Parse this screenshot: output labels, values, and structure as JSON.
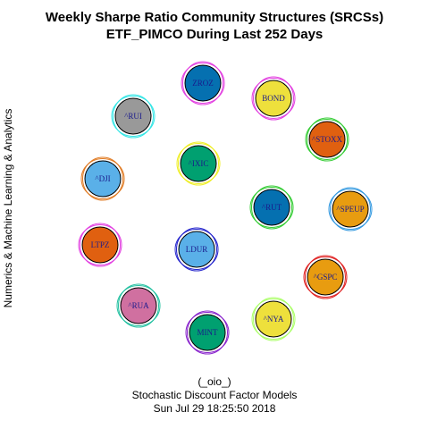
{
  "title": {
    "line1": "Weekly Sharpe Ratio Community Structures (SRCSs)",
    "line2": "ETF_PIMCO During Last 252 Days"
  },
  "ylabel": "Numerics & Machine Learning & Analytics",
  "footer": {
    "line1": "(_oio_)",
    "line2": "Stochastic Discount Factor Models",
    "line3": "Sun Jul 29 18:25:50 2018"
  },
  "nodes": [
    {
      "label": "ZROZ",
      "fill": "#0570b0",
      "ring": "#e23fe0"
    },
    {
      "label": "^RUI",
      "fill": "#999999",
      "ring": "#33e5e5"
    },
    {
      "label": "BOND",
      "fill": "#eee03c",
      "ring": "#e23fe0"
    },
    {
      "label": "^STOXX",
      "fill": "#e06010",
      "ring": "#33cc33"
    },
    {
      "label": "^IXIC",
      "fill": "#00a070",
      "ring": "#eeee22"
    },
    {
      "label": "^DJI",
      "fill": "#5ab0e8",
      "ring": "#e07a22"
    },
    {
      "label": "^RUT",
      "fill": "#0570b0",
      "ring": "#33cc33"
    },
    {
      "label": "^SPEUP",
      "fill": "#e89c10",
      "ring": "#3399e0"
    },
    {
      "label": "LTPZ",
      "fill": "#e06010",
      "ring": "#e23fe0"
    },
    {
      "label": "LDUR",
      "fill": "#5ab0e8",
      "ring": "#2222cc"
    },
    {
      "label": "^GSPC",
      "fill": "#e89c10",
      "ring": "#e02222"
    },
    {
      "label": "^RUA",
      "fill": "#d070a0",
      "ring": "#22c0a0"
    },
    {
      "label": "^NYA",
      "fill": "#eee03c",
      "ring": "#aaff66"
    },
    {
      "label": "MINT",
      "fill": "#00a070",
      "ring": "#8822cc"
    }
  ]
}
